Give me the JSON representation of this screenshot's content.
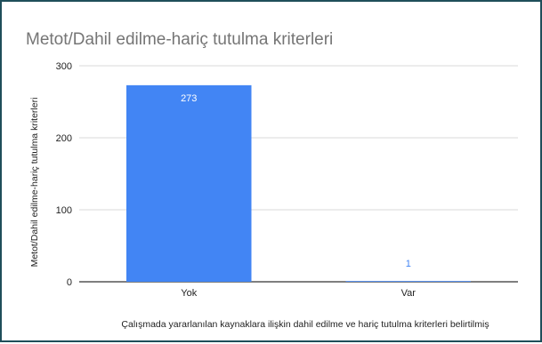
{
  "chart_data": {
    "type": "bar",
    "title": "Metot/Dahil edilme-hariç tutulma kriterleri",
    "xlabel": "Çalışmada yararlanılan kaynaklara ilişkin dahil edilme ve hariç tutulma kriterleri belirtilmiş",
    "ylabel": "Metot/Dahil edilme-hariç tutulma kriterleri",
    "categories": [
      "Yok",
      "Var"
    ],
    "values": [
      273,
      1
    ],
    "data_labels": [
      "273",
      "1"
    ],
    "ylim": [
      0,
      300
    ],
    "yticks": [
      0,
      100,
      200,
      300
    ],
    "ytick_labels": [
      "0",
      "100",
      "200",
      "300"
    ],
    "grid": true,
    "legend": "none",
    "colors": {
      "bar": "#4285f4",
      "label_inside": "#ffffff",
      "label_outside": "#4285f4",
      "grid": "#d9d9d9",
      "baseline": "#333333"
    }
  }
}
